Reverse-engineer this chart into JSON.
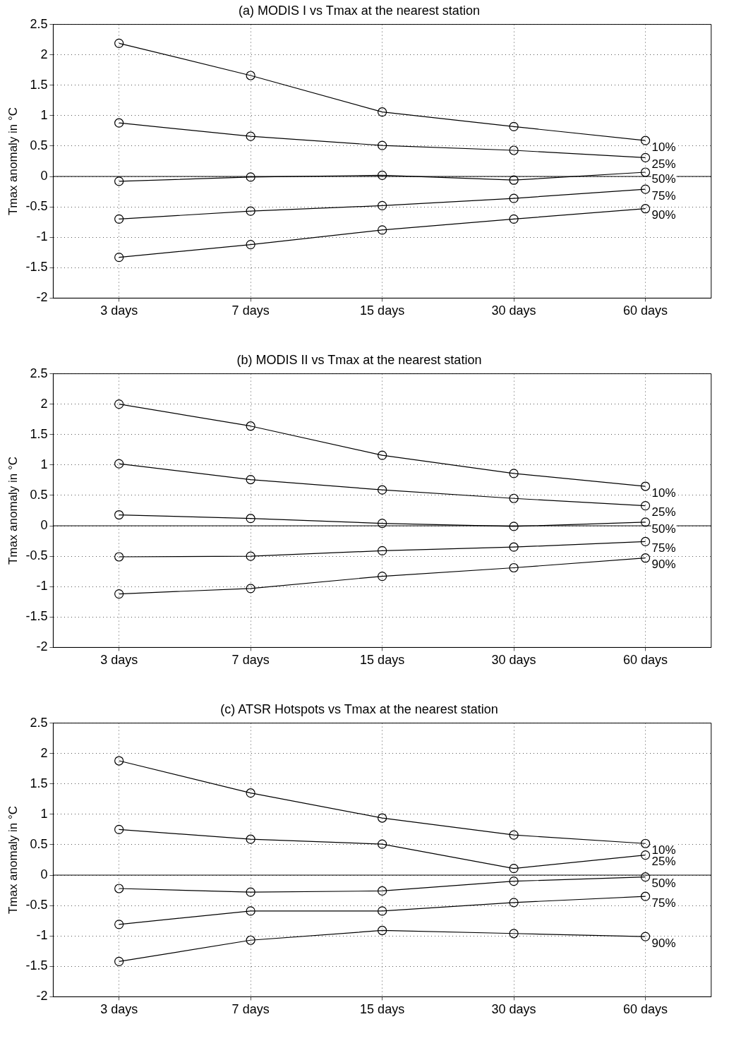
{
  "chart_data": [
    {
      "type": "line",
      "title": "(a) MODIS I vs Tmax at the nearest station",
      "ylabel": "Tmax anomaly in °C",
      "categories": [
        "3 days",
        "7 days",
        "15 days",
        "30 days",
        "60 days"
      ],
      "ylim": [
        -2,
        2.5
      ],
      "yticks": [
        -2,
        -1.5,
        -1,
        -0.5,
        0,
        0.5,
        1,
        1.5,
        2,
        2.5
      ],
      "grid": true,
      "marker": "circle",
      "legend": false,
      "ref_lines": [
        {
          "axis": "y",
          "value": 0,
          "color": "#000000"
        }
      ],
      "series": [
        {
          "name": "10%",
          "color": "#000000",
          "values": [
            2.19,
            1.66,
            1.06,
            0.82,
            0.59
          ]
        },
        {
          "name": "25%",
          "color": "#000000",
          "values": [
            0.88,
            0.66,
            0.51,
            0.43,
            0.31
          ]
        },
        {
          "name": "50%",
          "color": "#000000",
          "values": [
            -0.08,
            -0.01,
            0.02,
            -0.06,
            0.07
          ]
        },
        {
          "name": "75%",
          "color": "#000000",
          "values": [
            -0.7,
            -0.57,
            -0.48,
            -0.36,
            -0.21
          ]
        },
        {
          "name": "90%",
          "color": "#000000",
          "values": [
            -1.33,
            -1.12,
            -0.88,
            -0.7,
            -0.53
          ]
        }
      ]
    },
    {
      "type": "line",
      "title": "(b) MODIS II vs Tmax at the nearest station",
      "ylabel": "Tmax anomaly in °C",
      "categories": [
        "3 days",
        "7 days",
        "15 days",
        "30 days",
        "60 days"
      ],
      "ylim": [
        -2,
        2.5
      ],
      "yticks": [
        -2,
        -1.5,
        -1,
        -0.5,
        0,
        0.5,
        1,
        1.5,
        2,
        2.5
      ],
      "grid": true,
      "marker": "circle",
      "legend": false,
      "ref_lines": [
        {
          "axis": "y",
          "value": 0,
          "color": "#000000"
        }
      ],
      "series": [
        {
          "name": "10%",
          "color": "#000000",
          "values": [
            2.0,
            1.64,
            1.16,
            0.86,
            0.65
          ]
        },
        {
          "name": "25%",
          "color": "#000000",
          "values": [
            1.02,
            0.76,
            0.59,
            0.45,
            0.33
          ]
        },
        {
          "name": "50%",
          "color": "#000000",
          "values": [
            0.18,
            0.12,
            0.04,
            -0.01,
            0.06
          ]
        },
        {
          "name": "75%",
          "color": "#000000",
          "values": [
            -0.51,
            -0.5,
            -0.41,
            -0.35,
            -0.26
          ]
        },
        {
          "name": "90%",
          "color": "#000000",
          "values": [
            -1.12,
            -1.03,
            -0.83,
            -0.69,
            -0.53
          ]
        }
      ]
    },
    {
      "type": "line",
      "title": "(c) ATSR Hotspots vs Tmax at the nearest station",
      "ylabel": "Tmax anomaly in °C",
      "categories": [
        "3 days",
        "7 days",
        "15 days",
        "30 days",
        "60 days"
      ],
      "ylim": [
        -2,
        2.5
      ],
      "yticks": [
        -2,
        -1.5,
        -1,
        -0.5,
        0,
        0.5,
        1,
        1.5,
        2,
        2.5
      ],
      "grid": true,
      "marker": "circle",
      "legend": false,
      "ref_lines": [
        {
          "axis": "y",
          "value": 0,
          "color": "#000000"
        }
      ],
      "series": [
        {
          "name": "10%",
          "color": "#000000",
          "values": [
            1.88,
            1.35,
            0.94,
            0.66,
            0.52
          ]
        },
        {
          "name": "25%",
          "color": "#000000",
          "values": [
            0.75,
            0.59,
            0.51,
            0.11,
            0.33
          ]
        },
        {
          "name": "50%",
          "color": "#000000",
          "values": [
            -0.22,
            -0.28,
            -0.26,
            -0.1,
            -0.03
          ]
        },
        {
          "name": "75%",
          "color": "#000000",
          "values": [
            -0.81,
            -0.59,
            -0.59,
            -0.45,
            -0.35
          ]
        },
        {
          "name": "90%",
          "color": "#000000",
          "values": [
            -1.42,
            -1.07,
            -0.91,
            -0.96,
            -1.01
          ]
        }
      ]
    }
  ]
}
